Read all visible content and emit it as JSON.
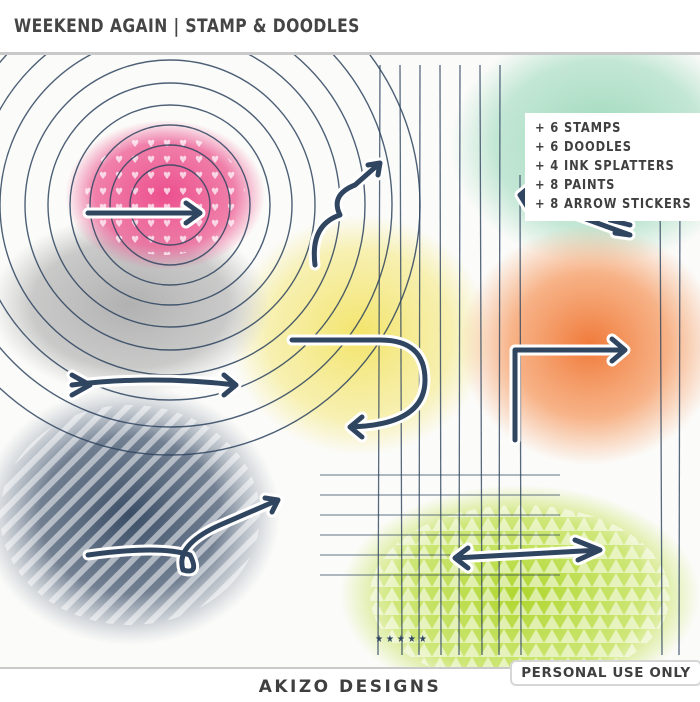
{
  "header": {
    "title": "WEEKEND AGAIN | STAMP & DOODLES"
  },
  "features": [
    "+ 6 STAMPS",
    "+ 6 DOODLES",
    "+ 4 INK SPLATTERS",
    "+ 8 PAINTS",
    "+ 8 ARROW STICKERS"
  ],
  "badge": "PERSONAL USE ONLY",
  "footer": {
    "brand": "AKIZO DESIGNS"
  },
  "colors": {
    "ink": "#2f4560",
    "pink": "#ec4f8d",
    "gray": "#b7b7b7",
    "yellow": "#f1e36a",
    "mint": "#9ed9bd",
    "orange": "#f07a3a",
    "navy_paint": "#3b4e66",
    "lime": "#b6db3a"
  }
}
